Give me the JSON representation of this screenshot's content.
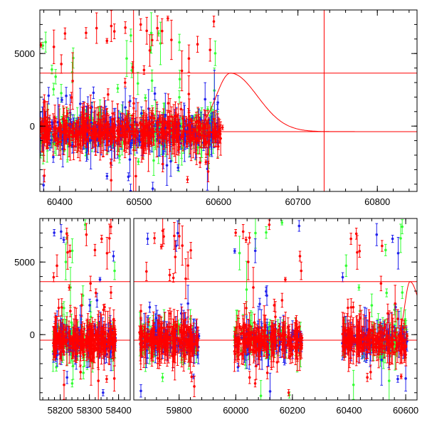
{
  "colors": {
    "series_red": "#ff0000",
    "series_green": "#33ff33",
    "series_blue": "#2222ee",
    "model_line": "#ff0000",
    "axes": "#000000"
  },
  "chart_data": [
    {
      "type": "scatter",
      "title": "",
      "xlabel": "",
      "ylabel": "",
      "xlim": [
        60375,
        60850
      ],
      "ylim": [
        -4500,
        8000
      ],
      "xticks": [
        60400,
        60500,
        60600,
        60700,
        60800
      ],
      "xtick_labels": [
        "60400",
        "60500",
        "60600",
        "60700",
        "60800"
      ],
      "yticks": [
        0,
        5000
      ],
      "ytick_labels": [
        "0",
        "5000"
      ],
      "series": [
        {
          "color": "green",
          "x_range": [
            60375,
            60600
          ],
          "y_scatter": [
            -3000,
            6500
          ]
        },
        {
          "color": "blue",
          "x_range": [
            60375,
            60600
          ],
          "y_scatter": [
            -4500,
            2500
          ]
        },
        {
          "color": "red",
          "x_range": [
            60375,
            60605
          ],
          "y_scatter": [
            -4000,
            7500
          ]
        }
      ],
      "model_curve": {
        "baseline": -380,
        "peak": 3650,
        "peak_x": 60615
      },
      "reference_lines": {
        "horizontal": [
          3650,
          -380
        ],
        "vertical": [
          60493,
          60733
        ]
      }
    },
    {
      "type": "scatter",
      "title": "",
      "xlabel": "",
      "ylabel": "",
      "ylim": [
        -4500,
        8000
      ],
      "segments": [
        {
          "xlim": [
            58130,
            58440
          ],
          "xticks": [
            58200,
            58300,
            58400
          ],
          "xtick_labels": [
            "58200",
            "58300",
            "58400"
          ]
        },
        {
          "xlim": [
            59640,
            60640
          ],
          "xticks": [
            59800,
            60000,
            60200,
            60400,
            60600
          ],
          "xtick_labels": [
            "59800",
            "60000",
            "60200",
            "60400",
            "60600"
          ]
        }
      ],
      "yticks": [
        0,
        5000
      ],
      "ytick_labels": [
        "0",
        "5000"
      ],
      "data_seasons": [
        [
          58175,
          58390
        ],
        [
          59660,
          59870
        ],
        [
          59995,
          60235
        ],
        [
          60375,
          60605
        ]
      ],
      "model_curve": {
        "baseline": -380,
        "peak": 3650,
        "peak_x": 60615
      },
      "reference_lines": {
        "horizontal": [
          3650,
          -380
        ]
      }
    }
  ]
}
